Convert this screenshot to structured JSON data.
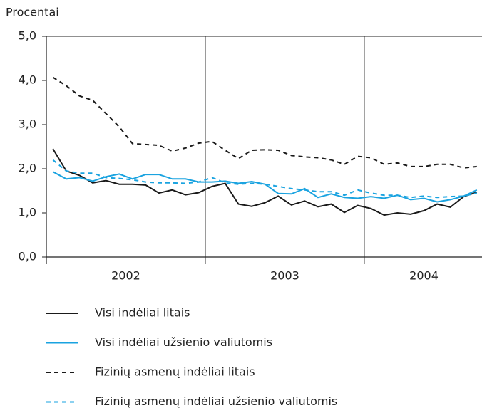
{
  "chart_data": {
    "type": "line",
    "y_axis_label": "Procentai",
    "categories": [
      null,
      null,
      null,
      null,
      null,
      null,
      null,
      null,
      null,
      null,
      null,
      null,
      null,
      null,
      null,
      null,
      null,
      null,
      null,
      null,
      null,
      null,
      null,
      null,
      null,
      null,
      null,
      null,
      null,
      null,
      null,
      null,
      null
    ],
    "year_labels": [
      "2002",
      "2003",
      "2004"
    ],
    "ylim": [
      0,
      5
    ],
    "yticks": [
      {
        "value": 0,
        "label": "0,0"
      },
      {
        "value": 1,
        "label": "1,0"
      },
      {
        "value": 2,
        "label": "2,0"
      },
      {
        "value": 3,
        "label": "3,0"
      },
      {
        "value": 4,
        "label": "4,0"
      },
      {
        "value": 5,
        "label": "5,0"
      }
    ],
    "series": [
      {
        "name": "Visi indėliai litais",
        "color": "#1a1a1a",
        "dashed": false,
        "values": [
          2.45,
          1.95,
          1.85,
          1.68,
          1.73,
          1.65,
          1.65,
          1.63,
          1.45,
          1.52,
          1.41,
          1.46,
          1.6,
          1.67,
          1.2,
          1.15,
          1.23,
          1.38,
          1.18,
          1.27,
          1.14,
          1.2,
          1.01,
          1.17,
          1.1,
          0.95,
          1.0,
          0.97,
          1.05,
          1.2,
          1.13,
          1.37,
          1.47
        ]
      },
      {
        "name": "Visi indėliai užsienio valiutomis",
        "color": "#1aa3e0",
        "dashed": false,
        "values": [
          1.93,
          1.77,
          1.8,
          1.72,
          1.82,
          1.88,
          1.77,
          1.87,
          1.87,
          1.77,
          1.77,
          1.7,
          1.7,
          1.72,
          1.67,
          1.71,
          1.65,
          1.44,
          1.43,
          1.55,
          1.35,
          1.43,
          1.35,
          1.33,
          1.37,
          1.33,
          1.4,
          1.3,
          1.33,
          1.25,
          1.3,
          1.38,
          1.52
        ]
      },
      {
        "name": "Fizinių asmenų indėliai litais",
        "color": "#1a1a1a",
        "dashed": true,
        "values": [
          4.07,
          3.88,
          3.65,
          3.55,
          3.25,
          2.95,
          2.57,
          2.55,
          2.53,
          2.4,
          2.47,
          2.58,
          2.62,
          2.42,
          2.23,
          2.42,
          2.43,
          2.42,
          2.3,
          2.27,
          2.25,
          2.2,
          2.1,
          2.28,
          2.25,
          2.1,
          2.13,
          2.05,
          2.05,
          2.1,
          2.1,
          2.02,
          2.05
        ]
      },
      {
        "name": "Fizinių asmenų indėliai užsienio valiutomis",
        "color": "#1aa3e0",
        "dashed": true,
        "values": [
          2.2,
          1.95,
          1.9,
          1.9,
          1.8,
          1.78,
          1.75,
          1.7,
          1.68,
          1.68,
          1.67,
          1.7,
          1.8,
          1.68,
          1.65,
          1.67,
          1.65,
          1.6,
          1.55,
          1.52,
          1.48,
          1.48,
          1.4,
          1.52,
          1.45,
          1.4,
          1.4,
          1.35,
          1.38,
          1.35,
          1.37,
          1.38,
          1.45
        ]
      }
    ]
  }
}
